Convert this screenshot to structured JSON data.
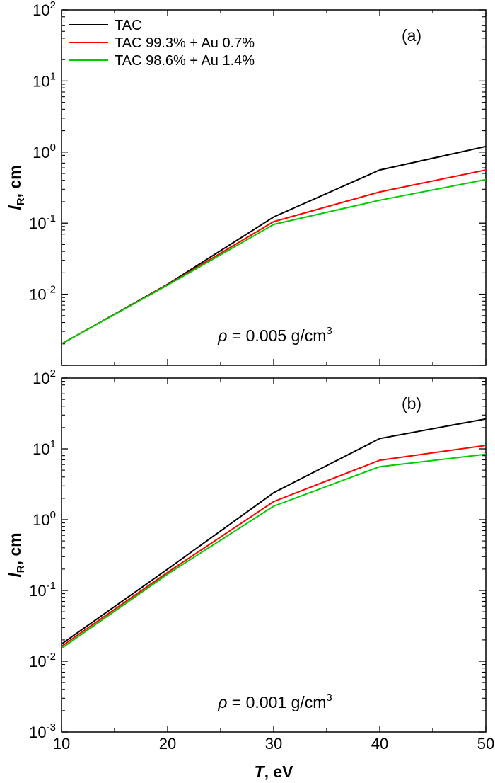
{
  "chart_data": [
    {
      "type": "line",
      "panel_label": "(a)",
      "annotation": {
        "symbol": "ρ",
        "text": " = 0.005 g/cm",
        "sup": "3"
      },
      "ylabel": {
        "main": "l",
        "sub": "R",
        "rest": ", cm"
      },
      "xlim": [
        10,
        50
      ],
      "ylim": [
        0.001,
        100
      ],
      "yscale": "log",
      "xticks": [
        10,
        20,
        30,
        40,
        50
      ],
      "yticks": [
        {
          "value": 0.01,
          "base": "10",
          "exp": "-2"
        },
        {
          "value": 0.1,
          "base": "10",
          "exp": "-1"
        },
        {
          "value": 1,
          "base": "10",
          "exp": "0"
        },
        {
          "value": 10,
          "base": "10",
          "exp": "1"
        },
        {
          "value": 100,
          "base": "10",
          "exp": "2"
        }
      ],
      "x": [
        10,
        20,
        30,
        40,
        50
      ],
      "legend": {
        "position": "top-left"
      },
      "series": [
        {
          "name": "TAC",
          "color": "#000000",
          "values": [
            0.002,
            0.0138,
            0.122,
            0.56,
            1.2
          ]
        },
        {
          "name": "TAC 99.3% + Au 0.7%",
          "color": "#ff0000",
          "values": [
            0.002,
            0.0136,
            0.105,
            0.275,
            0.56
          ]
        },
        {
          "name": "TAC 98.6% + Au 1.4%",
          "color": "#00cc00",
          "values": [
            0.002,
            0.0134,
            0.096,
            0.21,
            0.41
          ]
        }
      ]
    },
    {
      "type": "line",
      "panel_label": "(b)",
      "annotation": {
        "symbol": "ρ",
        "text": " = 0.001 g/cm",
        "sup": "3"
      },
      "ylabel": {
        "main": "l",
        "sub": "R",
        "rest": ", cm"
      },
      "xlabel": {
        "main": "T",
        "rest": ", eV"
      },
      "xlim": [
        10,
        50
      ],
      "ylim": [
        0.001,
        100
      ],
      "yscale": "log",
      "xticks": [
        10,
        20,
        30,
        40,
        50
      ],
      "yticks": [
        {
          "value": 0.001,
          "base": "10",
          "exp": "-3"
        },
        {
          "value": 0.01,
          "base": "10",
          "exp": "-2"
        },
        {
          "value": 0.1,
          "base": "10",
          "exp": "-1"
        },
        {
          "value": 1,
          "base": "10",
          "exp": "0"
        },
        {
          "value": 10,
          "base": "10",
          "exp": "1"
        },
        {
          "value": 100,
          "base": "10",
          "exp": "2"
        }
      ],
      "x": [
        10,
        20,
        30,
        40,
        50
      ],
      "series": [
        {
          "name": "TAC",
          "color": "#000000",
          "values": [
            0.0175,
            0.2,
            2.4,
            14.0,
            26.5
          ]
        },
        {
          "name": "TAC 99.3% + Au 0.7%",
          "color": "#ff0000",
          "values": [
            0.0162,
            0.18,
            1.8,
            6.9,
            11.2
          ]
        },
        {
          "name": "TAC 98.6% + Au 1.4%",
          "color": "#00cc00",
          "values": [
            0.0152,
            0.17,
            1.55,
            5.6,
            8.4
          ]
        }
      ]
    }
  ]
}
